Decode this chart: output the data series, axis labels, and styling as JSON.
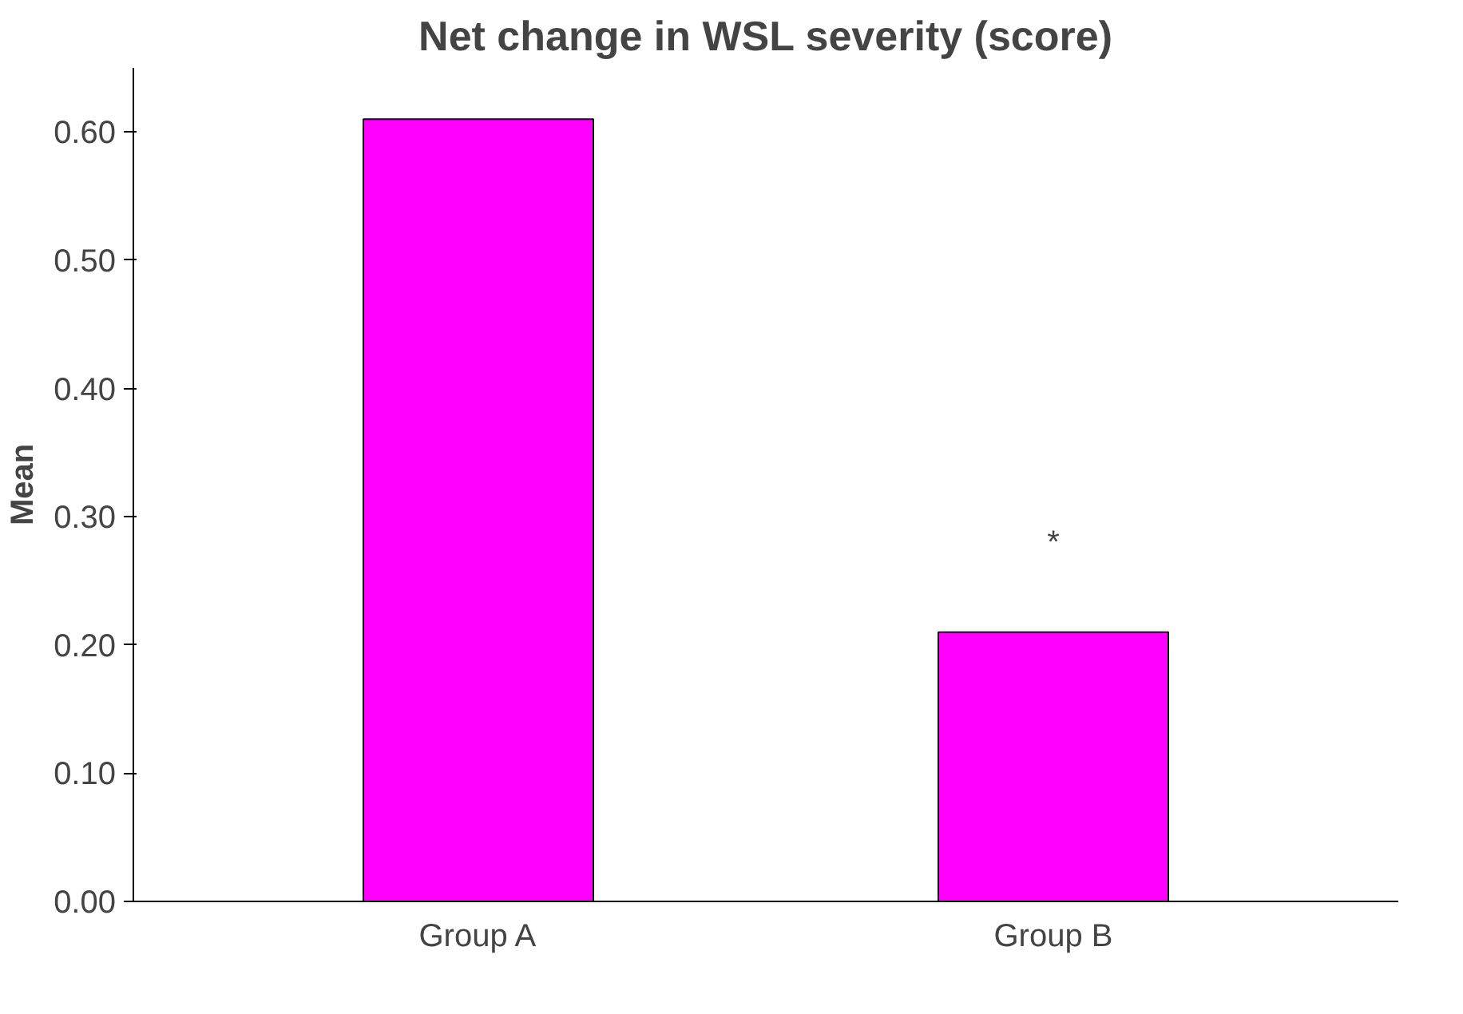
{
  "chart_data": {
    "type": "bar",
    "title": "Net change in WSL severity (score)",
    "ylabel": "Mean",
    "categories": [
      "Group A",
      "Group B"
    ],
    "values": [
      0.61,
      0.21
    ],
    "color": "#ff00ff",
    "ylim": [
      0,
      0.65
    ],
    "yticks": [
      {
        "value": 0,
        "label": "0.00"
      },
      {
        "value": 0.1,
        "label": "0.10"
      },
      {
        "value": 0.2,
        "label": "0.20"
      },
      {
        "value": 0.3,
        "label": "0.30"
      },
      {
        "value": 0.4,
        "label": "0.40"
      },
      {
        "value": 0.5,
        "label": "0.50"
      },
      {
        "value": 0.6,
        "label": "0.60"
      }
    ],
    "annotations": [
      "*"
    ],
    "grid": false
  }
}
